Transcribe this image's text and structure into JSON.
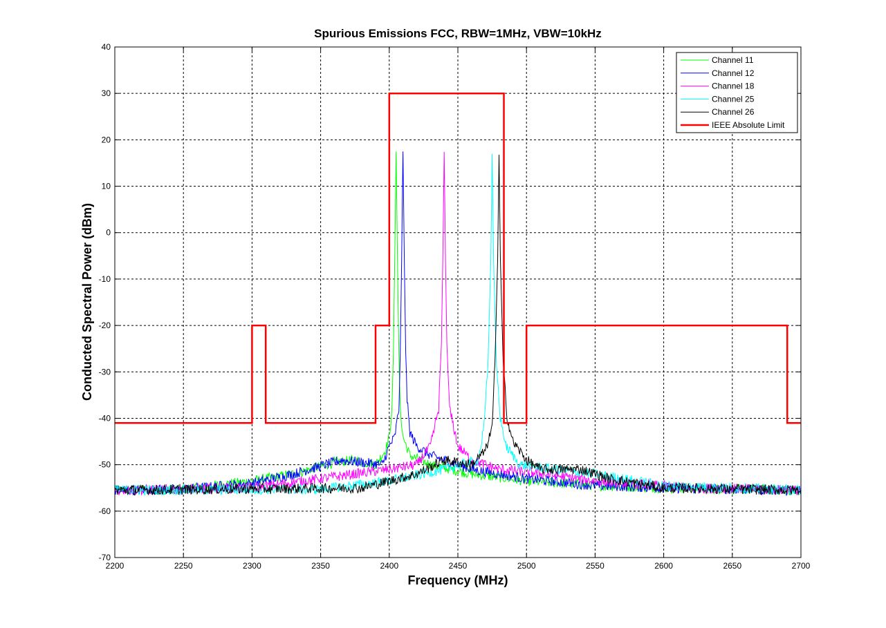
{
  "chart_data": {
    "type": "line",
    "title": "Spurious Emissions FCC, RBW=1MHz, VBW=10kHz",
    "xlabel": "Frequency (MHz)",
    "ylabel": "Conducted Spectral Power (dBm)",
    "xlim": [
      2200,
      2700
    ],
    "ylim": [
      -70,
      40
    ],
    "xticks": [
      2200,
      2250,
      2300,
      2350,
      2400,
      2450,
      2500,
      2550,
      2600,
      2650,
      2700
    ],
    "yticks": [
      -70,
      -60,
      -50,
      -40,
      -30,
      -20,
      -10,
      0,
      10,
      20,
      30,
      40
    ],
    "grid": true,
    "legend_position": "top-right",
    "series": [
      {
        "name": "Channel 11",
        "color": "#00ff00",
        "points": [
          [
            2200,
            -55.5
          ],
          [
            2250,
            -55.3
          ],
          [
            2300,
            -53.5
          ],
          [
            2330,
            -52
          ],
          [
            2360,
            -49.5
          ],
          [
            2375,
            -49
          ],
          [
            2390,
            -50
          ],
          [
            2397,
            -47
          ],
          [
            2400,
            -44
          ],
          [
            2402,
            -38
          ],
          [
            2403,
            -26
          ],
          [
            2404,
            -6
          ],
          [
            2405,
            17.5
          ],
          [
            2406,
            -6
          ],
          [
            2407,
            -26
          ],
          [
            2408,
            -38
          ],
          [
            2410,
            -44
          ],
          [
            2415,
            -48
          ],
          [
            2430,
            -50
          ],
          [
            2460,
            -52
          ],
          [
            2500,
            -53.5
          ],
          [
            2550,
            -54.5
          ],
          [
            2600,
            -55
          ],
          [
            2700,
            -55.5
          ]
        ]
      },
      {
        "name": "Channel 12",
        "color": "#0000ff",
        "points": [
          [
            2200,
            -55.5
          ],
          [
            2250,
            -55.3
          ],
          [
            2300,
            -54
          ],
          [
            2330,
            -52
          ],
          [
            2365,
            -49
          ],
          [
            2380,
            -49.5
          ],
          [
            2395,
            -50
          ],
          [
            2400,
            -46
          ],
          [
            2404,
            -44
          ],
          [
            2407,
            -38
          ],
          [
            2408,
            -26
          ],
          [
            2409,
            -6
          ],
          [
            2410,
            17.5
          ],
          [
            2411,
            -6
          ],
          [
            2412,
            -26
          ],
          [
            2413,
            -36
          ],
          [
            2415,
            -43
          ],
          [
            2420,
            -46
          ],
          [
            2430,
            -48
          ],
          [
            2460,
            -51
          ],
          [
            2500,
            -53
          ],
          [
            2550,
            -54.5
          ],
          [
            2600,
            -55
          ],
          [
            2700,
            -55.5
          ]
        ]
      },
      {
        "name": "Channel 18",
        "color": "#ff00ff",
        "points": [
          [
            2200,
            -55.5
          ],
          [
            2300,
            -55
          ],
          [
            2350,
            -53
          ],
          [
            2400,
            -51
          ],
          [
            2420,
            -50
          ],
          [
            2430,
            -46
          ],
          [
            2436,
            -38
          ],
          [
            2438,
            -24
          ],
          [
            2439,
            -6
          ],
          [
            2440,
            17.4
          ],
          [
            2441,
            -6
          ],
          [
            2442,
            -24
          ],
          [
            2444,
            -38
          ],
          [
            2450,
            -46
          ],
          [
            2460,
            -49
          ],
          [
            2480,
            -51
          ],
          [
            2500,
            -51.5
          ],
          [
            2550,
            -53.5
          ],
          [
            2620,
            -55
          ],
          [
            2700,
            -55.5
          ]
        ]
      },
      {
        "name": "Channel 25",
        "color": "#00ffff",
        "points": [
          [
            2200,
            -55.5
          ],
          [
            2350,
            -55.3
          ],
          [
            2400,
            -53.5
          ],
          [
            2440,
            -51
          ],
          [
            2465,
            -49
          ],
          [
            2469,
            -42
          ],
          [
            2472,
            -28
          ],
          [
            2474,
            -6
          ],
          [
            2475,
            17
          ],
          [
            2476,
            -6
          ],
          [
            2478,
            -28
          ],
          [
            2481,
            -40
          ],
          [
            2485,
            -46
          ],
          [
            2495,
            -50
          ],
          [
            2520,
            -51
          ],
          [
            2550,
            -52
          ],
          [
            2600,
            -54.5
          ],
          [
            2700,
            -55.5
          ]
        ]
      },
      {
        "name": "Channel 26",
        "color": "#000000",
        "points": [
          [
            2200,
            -55.5
          ],
          [
            2380,
            -55
          ],
          [
            2420,
            -52
          ],
          [
            2440,
            -49
          ],
          [
            2460,
            -50
          ],
          [
            2470,
            -47
          ],
          [
            2475,
            -42
          ],
          [
            2477,
            -28
          ],
          [
            2479,
            -6
          ],
          [
            2480,
            16.8
          ],
          [
            2481,
            -6
          ],
          [
            2483,
            -28
          ],
          [
            2486,
            -40
          ],
          [
            2490,
            -45
          ],
          [
            2500,
            -49
          ],
          [
            2510,
            -51
          ],
          [
            2540,
            -51
          ],
          [
            2560,
            -53
          ],
          [
            2600,
            -55
          ],
          [
            2700,
            -55.5
          ]
        ]
      },
      {
        "name": "IEEE Absolute Limit",
        "color": "#ff0000",
        "step": true,
        "points": [
          [
            2200,
            -41
          ],
          [
            2300,
            -41
          ],
          [
            2300,
            -20
          ],
          [
            2310,
            -20
          ],
          [
            2310,
            -41
          ],
          [
            2390,
            -41
          ],
          [
            2390,
            -20
          ],
          [
            2400,
            -20
          ],
          [
            2400,
            30
          ],
          [
            2483.5,
            30
          ],
          [
            2483.5,
            -41
          ],
          [
            2500,
            -41
          ],
          [
            2500,
            -20
          ],
          [
            2690,
            -20
          ],
          [
            2690,
            -41
          ],
          [
            2700,
            -41
          ]
        ]
      }
    ]
  }
}
